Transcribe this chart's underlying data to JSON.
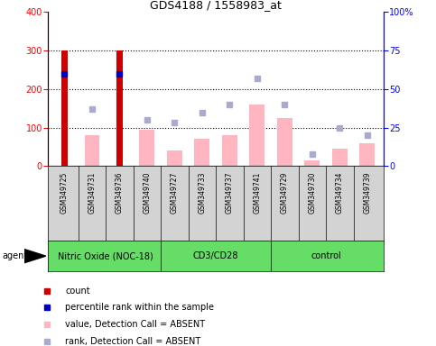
{
  "title": "GDS4188 / 1558983_at",
  "samples": [
    "GSM349725",
    "GSM349731",
    "GSM349736",
    "GSM349740",
    "GSM349727",
    "GSM349733",
    "GSM349737",
    "GSM349741",
    "GSM349729",
    "GSM349730",
    "GSM349734",
    "GSM349739"
  ],
  "group_boundaries": [
    {
      "start": 0,
      "end": 3,
      "name": "Nitric Oxide (NOC-18)"
    },
    {
      "start": 4,
      "end": 7,
      "name": "CD3/CD28"
    },
    {
      "start": 8,
      "end": 11,
      "name": "control"
    }
  ],
  "count_values": [
    300,
    0,
    300,
    0,
    0,
    0,
    0,
    0,
    0,
    0,
    0,
    0
  ],
  "percentile_rank": [
    60,
    null,
    60,
    null,
    null,
    null,
    null,
    null,
    null,
    null,
    null,
    null
  ],
  "absent_value": [
    null,
    80,
    null,
    95,
    40,
    70,
    80,
    160,
    125,
    15,
    45,
    60
  ],
  "absent_rank": [
    null,
    37,
    null,
    30,
    28,
    35,
    40,
    57,
    40,
    8,
    25,
    20
  ],
  "left_ylim": [
    0,
    400
  ],
  "right_ylim": [
    0,
    100
  ],
  "left_yticks": [
    0,
    100,
    200,
    300,
    400
  ],
  "right_yticks": [
    0,
    25,
    50,
    75,
    100
  ],
  "right_yticklabels": [
    "0",
    "25",
    "50",
    "75",
    "100%"
  ],
  "count_color": "#CC0000",
  "percentile_color": "#0000BB",
  "absent_value_color": "#FFB6C1",
  "absent_rank_color": "#AAAACC",
  "group_color": "#66DD66",
  "agent_label": "agent",
  "legend_items": [
    {
      "color": "#CC0000",
      "label": "count"
    },
    {
      "color": "#0000BB",
      "label": "percentile rank within the sample"
    },
    {
      "color": "#FFB6C1",
      "label": "value, Detection Call = ABSENT"
    },
    {
      "color": "#AAAACC",
      "label": "rank, Detection Call = ABSENT"
    }
  ]
}
